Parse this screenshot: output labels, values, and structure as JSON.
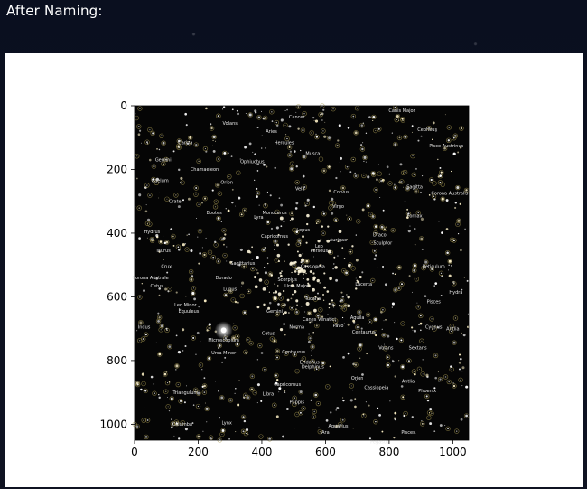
{
  "page": {
    "heading": "After Naming:"
  },
  "chart_data": {
    "type": "image",
    "xlim": [
      0,
      1050
    ],
    "ylim": [
      1050,
      0
    ],
    "x_ticks": [
      0,
      200,
      400,
      600,
      800,
      1000
    ],
    "y_ticks": [
      0,
      200,
      400,
      600,
      800,
      1000
    ],
    "labels": [
      {
        "text": "Canis Major",
        "x": 840,
        "y": 20
      },
      {
        "text": "Cepheus",
        "x": 920,
        "y": 80
      },
      {
        "text": "Pisce Austrinus",
        "x": 980,
        "y": 130
      },
      {
        "text": "Corona Australis",
        "x": 990,
        "y": 280
      },
      {
        "text": "Sagitta",
        "x": 880,
        "y": 260
      },
      {
        "text": "Fornax",
        "x": 880,
        "y": 350
      },
      {
        "text": "Draco",
        "x": 770,
        "y": 410
      },
      {
        "text": "Sculptor",
        "x": 780,
        "y": 435
      },
      {
        "text": "Reticulum",
        "x": 940,
        "y": 510
      },
      {
        "text": "Lacerta",
        "x": 720,
        "y": 565
      },
      {
        "text": "Pisces",
        "x": 940,
        "y": 620
      },
      {
        "text": "Hydra",
        "x": 1010,
        "y": 590
      },
      {
        "text": "Cygnus",
        "x": 940,
        "y": 700
      },
      {
        "text": "Antlia",
        "x": 1000,
        "y": 705
      },
      {
        "text": "Sextans",
        "x": 890,
        "y": 765
      },
      {
        "text": "Volans",
        "x": 790,
        "y": 765
      },
      {
        "text": "Antlia",
        "x": 860,
        "y": 870
      },
      {
        "text": "Phoenix",
        "x": 920,
        "y": 900
      },
      {
        "text": "Orion",
        "x": 700,
        "y": 860
      },
      {
        "text": "Cassiopeia",
        "x": 760,
        "y": 890
      },
      {
        "text": "Hydrus",
        "x": 55,
        "y": 400
      },
      {
        "text": "Taurus",
        "x": 90,
        "y": 460
      },
      {
        "text": "Crux",
        "x": 100,
        "y": 510
      },
      {
        "text": "Corona Australe",
        "x": 50,
        "y": 545
      },
      {
        "text": "Cetus",
        "x": 70,
        "y": 570
      },
      {
        "text": "Indus",
        "x": 30,
        "y": 700
      },
      {
        "text": "Lupus",
        "x": 300,
        "y": 580
      },
      {
        "text": "Leo Minor",
        "x": 160,
        "y": 630
      },
      {
        "text": "Equuleus",
        "x": 170,
        "y": 650
      },
      {
        "text": "Microscopium",
        "x": 280,
        "y": 740
      },
      {
        "text": "Ursa Minor",
        "x": 280,
        "y": 780
      },
      {
        "text": "Centaurus",
        "x": 500,
        "y": 778
      },
      {
        "text": "Eridanus",
        "x": 550,
        "y": 810
      },
      {
        "text": "Delphinus",
        "x": 560,
        "y": 825
      },
      {
        "text": "Triangulum",
        "x": 160,
        "y": 905
      },
      {
        "text": "Libra",
        "x": 420,
        "y": 910
      },
      {
        "text": "Capricornus",
        "x": 480,
        "y": 880
      },
      {
        "text": "Puppis",
        "x": 510,
        "y": 935
      },
      {
        "text": "Columba",
        "x": 150,
        "y": 1005
      },
      {
        "text": "Lynx",
        "x": 290,
        "y": 1000
      },
      {
        "text": "Aquarius",
        "x": 640,
        "y": 1010
      },
      {
        "text": "Ara",
        "x": 600,
        "y": 1030
      },
      {
        "text": "Pegasus",
        "x": 770,
        "y": 1060
      },
      {
        "text": "Pisces",
        "x": 860,
        "y": 1030
      },
      {
        "text": "Volans",
        "x": 300,
        "y": 60
      },
      {
        "text": "Aries",
        "x": 430,
        "y": 85
      },
      {
        "text": "Cancer",
        "x": 510,
        "y": 40
      },
      {
        "text": "Carina",
        "x": 160,
        "y": 120
      },
      {
        "text": "Hercules",
        "x": 470,
        "y": 120
      },
      {
        "text": "Musca",
        "x": 560,
        "y": 155
      },
      {
        "text": "Gemini",
        "x": 90,
        "y": 175
      },
      {
        "text": "Chamaeleon",
        "x": 220,
        "y": 205
      },
      {
        "text": "Ophiuchus",
        "x": 370,
        "y": 180
      },
      {
        "text": "Caelum",
        "x": 80,
        "y": 240
      },
      {
        "text": "Orion",
        "x": 290,
        "y": 245
      },
      {
        "text": "Crater",
        "x": 130,
        "y": 305
      },
      {
        "text": "Bootes",
        "x": 250,
        "y": 340
      },
      {
        "text": "Lyra",
        "x": 390,
        "y": 355
      },
      {
        "text": "Monoceros",
        "x": 440,
        "y": 340
      },
      {
        "text": "Vela",
        "x": 520,
        "y": 265
      },
      {
        "text": "Corvus",
        "x": 650,
        "y": 275
      },
      {
        "text": "Virgo",
        "x": 640,
        "y": 320
      },
      {
        "text": "Lepus",
        "x": 530,
        "y": 395
      },
      {
        "text": "Capricornus",
        "x": 440,
        "y": 415
      },
      {
        "text": "Aurigae",
        "x": 640,
        "y": 425
      },
      {
        "text": "Leo",
        "x": 580,
        "y": 445
      },
      {
        "text": "Perseus",
        "x": 580,
        "y": 460
      },
      {
        "text": "Sagittarius",
        "x": 340,
        "y": 500
      },
      {
        "text": "Cassiopeia",
        "x": 560,
        "y": 510
      },
      {
        "text": "Dorado",
        "x": 280,
        "y": 545
      },
      {
        "text": "Scorpius",
        "x": 480,
        "y": 550
      },
      {
        "text": "Ursa Major",
        "x": 510,
        "y": 570
      },
      {
        "text": "Tucana",
        "x": 560,
        "y": 610
      },
      {
        "text": "Gemini",
        "x": 440,
        "y": 650
      },
      {
        "text": "Canes Venatici",
        "x": 580,
        "y": 675
      },
      {
        "text": "Pavo",
        "x": 640,
        "y": 695
      },
      {
        "text": "Aquila",
        "x": 700,
        "y": 670
      },
      {
        "text": "Norma",
        "x": 510,
        "y": 700
      },
      {
        "text": "Cetus",
        "x": 420,
        "y": 720
      },
      {
        "text": "Centaurus",
        "x": 720,
        "y": 715
      }
    ]
  }
}
